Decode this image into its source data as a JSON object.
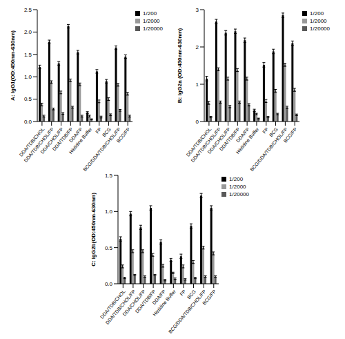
{
  "chart_data": [
    {
      "type": "bar",
      "y_label": "A: IgG1(OD:450nm-630nm)",
      "legend": "upper right",
      "grid": false,
      "categories": [
        "DDA/TDB/CHOL",
        "DDA/TDB/CHOL/FP",
        "DDA/CHOL/FP",
        "DDA/TDB/FP",
        "DDA/FP",
        "Histidine Buffer",
        "FP",
        "BCG",
        "BCG/DDA/TDB/CHOL/FP",
        "BCG/FP"
      ],
      "ylim": [
        0,
        2.5
      ],
      "yticks": [
        {
          "value": 0,
          "label": "0.0"
        },
        {
          "value": 0.5,
          "label": "0.5"
        },
        {
          "value": 1,
          "label": "1.0"
        },
        {
          "value": 1.5,
          "label": "1.5"
        },
        {
          "value": 2,
          "label": "2.0"
        },
        {
          "value": 2.5,
          "label": "2.5"
        }
      ],
      "series": [
        {
          "name": "1/200",
          "color": "#000000",
          "values": [
            1.22,
            1.78,
            1.3,
            2.13,
            1.55,
            0.2,
            1.12,
            0.9,
            1.65,
            1.45
          ],
          "errors": [
            0.04,
            0.04,
            0.04,
            0.04,
            0.04,
            0.02,
            0.04,
            0.04,
            0.04,
            0.04
          ]
        },
        {
          "name": "1/2000",
          "color": "#999999",
          "values": [
            0.38,
            0.88,
            0.65,
            0.92,
            0.83,
            0.12,
            0.45,
            0.5,
            0.82,
            0.62
          ],
          "errors": [
            0.03,
            0.03,
            0.03,
            0.03,
            0.03,
            0.02,
            0.03,
            0.03,
            0.03,
            0.03
          ]
        },
        {
          "name": "1/20000",
          "color": "#595959",
          "values": [
            0.12,
            0.28,
            0.18,
            0.32,
            0.12,
            0.05,
            0.1,
            0.15,
            0.25,
            0.12
          ],
          "errors": [
            0.02,
            0.02,
            0.02,
            0.02,
            0.02,
            0.01,
            0.02,
            0.02,
            0.02,
            0.02
          ]
        }
      ]
    },
    {
      "type": "bar",
      "y_label": "B: IgG2a (OD:450nm-630nm)",
      "legend": "upper right",
      "grid": false,
      "categories": [
        "DDA/TDB/CHOL",
        "DDA/TDB/CHOL/FP",
        "DDA/CHOL/FP",
        "DDA/TDB/FP",
        "DDA/FP",
        "Histidine Buffer",
        "FP",
        "BCG",
        "BCG/DDA/TDB/CHOL/FP",
        "BCG/FP"
      ],
      "ylim": [
        0,
        3
      ],
      "yticks": [
        0,
        1,
        2,
        3
      ],
      "series": [
        {
          "name": "1/200",
          "color": "#000000",
          "values": [
            1.15,
            2.68,
            2.38,
            2.42,
            2.18,
            0.3,
            1.52,
            1.88,
            2.85,
            2.1
          ],
          "errors": [
            0.06,
            0.06,
            0.06,
            0.06,
            0.06,
            0.03,
            0.06,
            0.06,
            0.06,
            0.06
          ]
        },
        {
          "name": "1/2000",
          "color": "#999999",
          "values": [
            0.5,
            1.4,
            1.15,
            1.38,
            1.15,
            0.2,
            0.55,
            0.82,
            1.52,
            0.85
          ],
          "errors": [
            0.04,
            0.04,
            0.04,
            0.04,
            0.04,
            0.02,
            0.04,
            0.04,
            0.04,
            0.04
          ]
        },
        {
          "name": "1/20000",
          "color": "#595959",
          "values": [
            0.12,
            0.52,
            0.4,
            0.52,
            0.45,
            0.08,
            0.12,
            0.2,
            0.38,
            0.18
          ],
          "errors": [
            0.02,
            0.03,
            0.03,
            0.03,
            0.03,
            0.01,
            0.02,
            0.02,
            0.03,
            0.02
          ]
        }
      ]
    },
    {
      "type": "bar",
      "y_label": "C: IgG2b(OD:450nm-630nm)",
      "legend": "upper right",
      "grid": false,
      "categories": [
        "DDA/TDB/CHOL",
        "DDA/TDB/CHOL/FP",
        "DDA/CHOL/FP",
        "DDA/TDB/FP",
        "DDA/FP",
        "Histidine Buffer",
        "FP",
        "BCG",
        "BCG/DDA/TDB/CHOL/FP",
        "BCG/FP"
      ],
      "ylim": [
        0,
        1.5
      ],
      "yticks": [
        {
          "value": 0,
          "label": "0.0"
        },
        {
          "value": 0.5,
          "label": "0.5"
        },
        {
          "value": 1,
          "label": "1.0"
        },
        {
          "value": 1.5,
          "label": "1.5"
        }
      ],
      "series": [
        {
          "name": "1/200",
          "color": "#000000",
          "values": [
            0.62,
            0.97,
            0.78,
            1.05,
            0.58,
            0.33,
            0.38,
            0.8,
            1.22,
            1.05
          ],
          "errors": [
            0.03,
            0.03,
            0.03,
            0.03,
            0.03,
            0.02,
            0.03,
            0.03,
            0.03,
            0.03
          ]
        },
        {
          "name": "1/2000",
          "color": "#999999",
          "values": [
            0.24,
            0.45,
            0.45,
            0.4,
            0.25,
            0.15,
            0.24,
            0.3,
            0.5,
            0.42
          ],
          "errors": [
            0.02,
            0.02,
            0.02,
            0.02,
            0.02,
            0.01,
            0.02,
            0.02,
            0.02,
            0.02
          ]
        },
        {
          "name": "1/20000",
          "color": "#595959",
          "values": [
            0.08,
            0.12,
            0.1,
            0.12,
            0.05,
            0.07,
            0.06,
            0.08,
            0.1,
            0.1
          ],
          "errors": [
            0.01,
            0.01,
            0.01,
            0.01,
            0.01,
            0.01,
            0.01,
            0.01,
            0.01,
            0.01
          ]
        }
      ]
    }
  ]
}
